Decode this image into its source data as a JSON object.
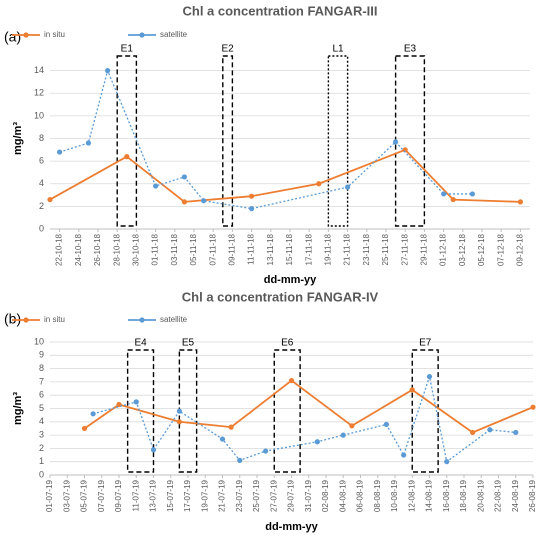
{
  "chart_data": [
    {
      "type": "line",
      "panel_label": "(a)",
      "title": "Chl a concentration FANGAR-III",
      "xlabel": "dd-mm-yy",
      "ylabel": "mg/m³",
      "grid": true,
      "legend": "top-left",
      "xlim": [
        "21-10-18",
        "10-12-18"
      ],
      "xticks": [
        "22-10-18",
        "24-10-18",
        "26-10-18",
        "28-10-18",
        "30-10-18",
        "01-11-18",
        "03-11-18",
        "05-11-18",
        "07-11-18",
        "09-11-18",
        "11-11-18",
        "13-11-18",
        "15-11-18",
        "17-11-18",
        "19-11-18",
        "21-11-18",
        "23-11-18",
        "25-11-18",
        "27-11-18",
        "29-11-18",
        "01-12-18",
        "03-12-18",
        "05-12-18",
        "07-12-18",
        "09-12-18"
      ],
      "ylim": [
        0,
        16
      ],
      "yticks": [
        0,
        2,
        4,
        6,
        8,
        10,
        12,
        14
      ],
      "series": [
        {
          "name": "in situ",
          "color": "#ed7d31",
          "style": "solid",
          "x": [
            "21-10-18",
            "29-10-18",
            "04-11-18",
            "11-11-18",
            "18-11-18",
            "27-11-18",
            "02-12-18",
            "09-12-18"
          ],
          "values": [
            2.6,
            6.4,
            2.4,
            2.9,
            4.0,
            7.0,
            2.6,
            2.4
          ]
        },
        {
          "name": "satellite",
          "color": "#5b9bd5",
          "style": "dotted",
          "x": [
            "22-10-18",
            "25-10-18",
            "27-10-18",
            "01-11-18",
            "04-11-18",
            "06-11-18",
            "11-11-18",
            "21-11-18",
            "26-11-18",
            "01-12-18",
            "04-12-18"
          ],
          "values": [
            6.8,
            7.6,
            14.0,
            3.8,
            4.6,
            2.5,
            1.8,
            3.7,
            7.7,
            3.1,
            3.1
          ]
        }
      ],
      "annotations": [
        {
          "label": "E1",
          "x": [
            "28-10-18",
            "30-10-18"
          ],
          "style": "dashed"
        },
        {
          "label": "E2",
          "x": [
            "08-11-18",
            "09-11-18"
          ],
          "style": "dashed"
        },
        {
          "label": "L1",
          "x": [
            "19-11-18",
            "21-11-18"
          ],
          "style": "dotted"
        },
        {
          "label": "E3",
          "x": [
            "26-11-18",
            "29-11-18"
          ],
          "style": "dashed"
        }
      ]
    },
    {
      "type": "line",
      "panel_label": "(b)",
      "title": "Chl a concentration FANGAR-IV",
      "xlabel": "dd-mm-yy",
      "ylabel": "mg/m³",
      "grid": true,
      "legend": "top-left",
      "xlim": [
        "01-07-19",
        "26-08-19"
      ],
      "xticks": [
        "01-07-19",
        "03-07-19",
        "05-07-19",
        "07-07-19",
        "09-07-19",
        "11-07-19",
        "13-07-19",
        "15-07-19",
        "17-07-19",
        "19-07-19",
        "21-07-19",
        "23-07-19",
        "25-07-19",
        "27-07-19",
        "29-07-19",
        "31-07-19",
        "02-08-19",
        "04-08-19",
        "06-08-19",
        "08-08-19",
        "10-08-19",
        "12-08-19",
        "14-08-19",
        "16-08-19",
        "18-08-19",
        "20-08-19",
        "22-08-19",
        "24-08-19",
        "26-08-19"
      ],
      "ylim": [
        0,
        10
      ],
      "yticks": [
        0,
        1,
        2,
        3,
        4,
        5,
        6,
        7,
        8,
        9,
        10
      ],
      "series": [
        {
          "name": "in situ",
          "color": "#ed7d31",
          "style": "solid",
          "x": [
            "05-07-19",
            "09-07-19",
            "16-07-19",
            "22-07-19",
            "29-07-19",
            "05-08-19",
            "12-08-19",
            "19-08-19",
            "26-08-19"
          ],
          "values": [
            3.5,
            5.3,
            4.0,
            3.6,
            7.1,
            3.7,
            6.4,
            3.2,
            5.1
          ]
        },
        {
          "name": "satellite",
          "color": "#5b9bd5",
          "style": "dotted",
          "x": [
            "06-07-19",
            "11-07-19",
            "13-07-19",
            "16-07-19",
            "21-07-19",
            "23-07-19",
            "26-07-19",
            "01-08-19",
            "04-08-19",
            "09-08-19",
            "11-08-19",
            "14-08-19",
            "16-08-19",
            "21-08-19",
            "24-08-19"
          ],
          "values": [
            4.6,
            5.5,
            1.9,
            4.8,
            2.7,
            1.1,
            1.8,
            2.5,
            3.0,
            3.8,
            1.5,
            7.4,
            1.0,
            3.4,
            3.2
          ]
        }
      ],
      "annotations": [
        {
          "label": "E4",
          "x": [
            "10-07-19",
            "13-07-19"
          ],
          "style": "dashed"
        },
        {
          "label": "E5",
          "x": [
            "16-07-19",
            "18-07-19"
          ],
          "style": "dashed"
        },
        {
          "label": "E6",
          "x": [
            "27-07-19",
            "30-07-19"
          ],
          "style": "dashed"
        },
        {
          "label": "E7",
          "x": [
            "12-08-19",
            "15-08-19"
          ],
          "style": "dashed"
        }
      ]
    }
  ]
}
